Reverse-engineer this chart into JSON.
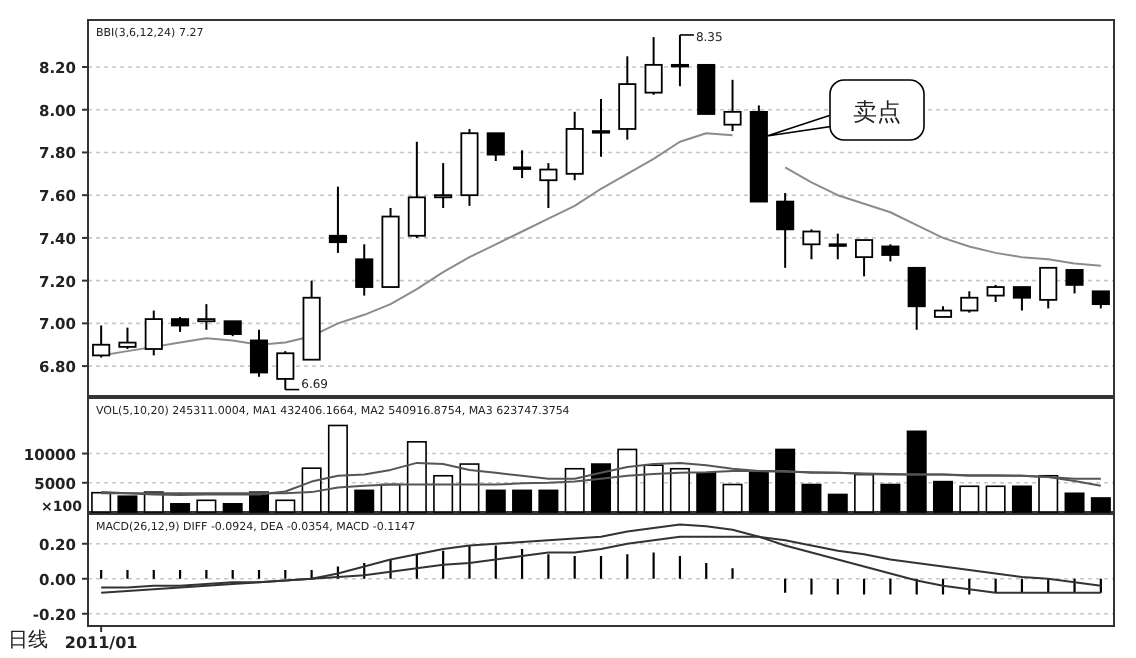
{
  "chart_data": [
    {
      "type": "candlestick",
      "subtitle": "BBI(3,6,12,24) 7.27",
      "categories": [
        null,
        null,
        null,
        null,
        null,
        null,
        null,
        null,
        null,
        null,
        null,
        null,
        null,
        null,
        null,
        null,
        null,
        null,
        null,
        null,
        null,
        null,
        null,
        null,
        null,
        null,
        null,
        null,
        null,
        null,
        null,
        null,
        null,
        null,
        null,
        null,
        null,
        null,
        null
      ],
      "ohlc": [
        [
          6.85,
          6.99,
          6.84,
          6.9
        ],
        [
          6.89,
          6.98,
          6.88,
          6.91
        ],
        [
          6.88,
          7.06,
          6.85,
          7.02
        ],
        [
          7.02,
          7.03,
          6.96,
          6.99
        ],
        [
          7.01,
          7.09,
          6.97,
          7.02
        ],
        [
          7.01,
          7.01,
          6.94,
          6.95
        ],
        [
          6.92,
          6.97,
          6.75,
          6.77
        ],
        [
          6.74,
          6.87,
          6.69,
          6.86
        ],
        [
          6.83,
          7.2,
          6.83,
          7.12
        ],
        [
          7.41,
          7.64,
          7.33,
          7.38
        ],
        [
          7.3,
          7.37,
          7.13,
          7.17
        ],
        [
          7.17,
          7.54,
          7.17,
          7.5
        ],
        [
          7.41,
          7.85,
          7.4,
          7.59
        ],
        [
          7.59,
          7.75,
          7.54,
          7.6
        ],
        [
          7.6,
          7.91,
          7.55,
          7.89
        ],
        [
          7.89,
          7.89,
          7.76,
          7.79
        ],
        [
          7.73,
          7.81,
          7.68,
          7.73
        ],
        [
          7.67,
          7.75,
          7.54,
          7.72
        ],
        [
          7.7,
          7.99,
          7.67,
          7.91
        ],
        [
          7.9,
          8.05,
          7.78,
          7.9
        ],
        [
          7.91,
          8.25,
          7.86,
          8.12
        ],
        [
          8.08,
          8.34,
          8.07,
          8.21
        ],
        [
          8.21,
          8.35,
          8.11,
          8.21
        ],
        [
          8.21,
          8.21,
          7.98,
          7.98
        ],
        [
          7.93,
          8.14,
          7.9,
          7.99
        ],
        [
          7.99,
          8.02,
          7.57,
          7.57
        ],
        [
          7.57,
          7.61,
          7.26,
          7.44
        ],
        [
          7.37,
          7.44,
          7.3,
          7.43
        ],
        [
          7.37,
          7.42,
          7.3,
          7.37
        ],
        [
          7.31,
          7.39,
          7.22,
          7.39
        ],
        [
          7.36,
          7.37,
          7.29,
          7.32
        ],
        [
          7.26,
          7.26,
          6.97,
          7.08
        ],
        [
          7.03,
          7.08,
          7.03,
          7.06
        ],
        [
          7.06,
          7.15,
          7.05,
          7.12
        ],
        [
          7.13,
          7.18,
          7.1,
          7.17
        ],
        [
          7.17,
          7.17,
          7.06,
          7.12
        ],
        [
          7.11,
          7.26,
          7.07,
          7.26
        ],
        [
          7.25,
          7.25,
          7.14,
          7.18
        ],
        [
          7.15,
          7.15,
          7.07,
          7.09
        ]
      ],
      "series": [
        {
          "type": "line",
          "color": "#8c8c8c",
          "values": [
            6.85,
            6.87,
            6.89,
            6.91,
            6.93,
            6.92,
            6.9,
            6.91,
            6.94,
            7.0,
            7.04,
            7.09,
            7.16,
            7.24,
            7.31,
            7.37,
            7.43,
            7.49,
            7.55,
            7.63,
            7.7,
            7.77,
            7.85,
            7.89,
            7.88,
            null,
            7.73,
            7.66,
            7.6,
            7.56,
            7.52,
            7.46,
            7.4,
            7.36,
            7.33,
            7.31,
            7.3,
            7.28,
            7.27
          ]
        }
      ],
      "ylim": [
        6.66,
        8.42
      ],
      "yticks": [
        {
          "value": 6.8,
          "label": "6.80"
        },
        {
          "value": 7.0,
          "label": "7.00"
        },
        {
          "value": 7.2,
          "label": "7.20"
        },
        {
          "value": 7.4,
          "label": "7.40"
        },
        {
          "value": 7.6,
          "label": "7.60"
        },
        {
          "value": 7.8,
          "label": "7.80"
        },
        {
          "value": 8.0,
          "label": "8.00"
        },
        {
          "value": 8.2,
          "label": "8.20"
        }
      ],
      "grid": "y",
      "tick_labels": "y",
      "annotations": [
        "8.35",
        "6.69",
        "卖点"
      ]
    },
    {
      "type": "bar",
      "subtitle": "VOL(5,10,20) 245311.0004, MA1 432406.1664, MA2 540916.8754, MA3 623747.3754",
      "ylabel": "×100",
      "categories": [
        null,
        null,
        null,
        null,
        null,
        null,
        null,
        null,
        null,
        null,
        null,
        null,
        null,
        null,
        null,
        null,
        null,
        null,
        null,
        null,
        null,
        null,
        null,
        null,
        null,
        null,
        null,
        null,
        null,
        null,
        null,
        null,
        null,
        null,
        null,
        null,
        null,
        null,
        null
      ],
      "series": [
        {
          "type": "bar",
          "values": [
            3300,
            2700,
            3400,
            1400,
            2000,
            1400,
            3400,
            2000,
            7500,
            14800,
            3700,
            4700,
            12000,
            6200,
            8200,
            3700,
            3700,
            3700,
            7400,
            8200,
            10700,
            8000,
            7400,
            6700,
            4700,
            6700,
            10700,
            4700,
            3000,
            6400,
            4700,
            13800,
            5200,
            4400,
            4400,
            4400,
            6200,
            3200,
            2400
          ],
          "colors": [
            "#ffffff",
            "#000000",
            "#ffffff",
            "#000000",
            "#ffffff",
            "#000000",
            "#000000",
            "#ffffff",
            "#ffffff",
            "#ffffff",
            "#000000",
            "#ffffff",
            "#ffffff",
            "#ffffff",
            "#ffffff",
            "#000000",
            "#000000",
            "#000000",
            "#ffffff",
            "#000000",
            "#ffffff",
            "#ffffff",
            "#ffffff",
            "#000000",
            "#ffffff",
            "#000000",
            "#000000",
            "#000000",
            "#000000",
            "#ffffff",
            "#000000",
            "#000000",
            "#000000",
            "#ffffff",
            "#ffffff",
            "#000000",
            "#ffffff",
            "#000000",
            "#000000"
          ]
        },
        {
          "type": "line",
          "color": "#555555",
          "values": [
            3400,
            3200,
            3000,
            2900,
            3000,
            3000,
            3000,
            3500,
            5200,
            6200,
            6400,
            7200,
            8400,
            8200,
            7200,
            6700,
            6200,
            5700,
            5700,
            6700,
            7700,
            8200,
            8400,
            8000,
            7400,
            7000,
            7000,
            6700,
            6700,
            6500,
            6400,
            6400,
            6400,
            6200,
            6200,
            6200,
            6000,
            5700,
            5700
          ]
        },
        {
          "type": "line",
          "color": "#555555",
          "values": [
            3200,
            3200,
            3200,
            3200,
            3200,
            3200,
            3200,
            3200,
            3400,
            4200,
            4500,
            4700,
            4700,
            4700,
            4700,
            4700,
            4900,
            5000,
            5200,
            5700,
            6200,
            6500,
            6700,
            6800,
            7000,
            7000,
            6900,
            6800,
            6700,
            6600,
            6500,
            6400,
            6400,
            6300,
            6300,
            6200,
            6000,
            5300,
            4500
          ]
        }
      ],
      "ylim": [
        0,
        19500
      ],
      "yticks": [
        5000,
        10000
      ],
      "grid": "y",
      "tick_labels": "y"
    },
    {
      "type": "line",
      "subtitle": "MACD(26,12,9) DIFF -0.0924, DEA -0.0354, MACD -0.1147",
      "categories": [
        "2011/01",
        null,
        null,
        null,
        null,
        null,
        null,
        null,
        null,
        null,
        null,
        null,
        null,
        null,
        null,
        null,
        null,
        null,
        null,
        null,
        null,
        null,
        null,
        null,
        null,
        null,
        null,
        null,
        null,
        null,
        null,
        null,
        null,
        null,
        null,
        null,
        null,
        null,
        null
      ],
      "series": [
        {
          "type": "bar",
          "color": "#000000",
          "values": [
            0.05,
            0.05,
            0.05,
            0.05,
            0.05,
            0.05,
            0.05,
            0.05,
            0.05,
            0.07,
            0.09,
            0.11,
            0.14,
            0.16,
            0.19,
            0.19,
            0.17,
            0.14,
            0.13,
            0.13,
            0.14,
            0.15,
            0.13,
            0.09,
            0.06,
            0.0,
            -0.08,
            -0.09,
            -0.09,
            -0.09,
            -0.09,
            -0.09,
            -0.09,
            -0.09,
            -0.08,
            -0.08,
            -0.08,
            -0.08,
            -0.08
          ]
        },
        {
          "type": "line",
          "color": "#333333",
          "values": [
            -0.08,
            -0.07,
            -0.06,
            -0.05,
            -0.04,
            -0.03,
            -0.02,
            -0.01,
            0.0,
            0.03,
            0.07,
            0.11,
            0.14,
            0.17,
            0.19,
            0.2,
            0.21,
            0.22,
            0.23,
            0.24,
            0.27,
            0.29,
            0.31,
            0.3,
            0.28,
            0.24,
            0.19,
            0.15,
            0.11,
            0.07,
            0.03,
            -0.01,
            -0.04,
            -0.06,
            -0.08,
            -0.08,
            -0.08,
            -0.08,
            -0.08
          ]
        },
        {
          "type": "line",
          "color": "#333333",
          "values": [
            -0.05,
            -0.05,
            -0.04,
            -0.04,
            -0.03,
            -0.02,
            -0.02,
            -0.01,
            0.0,
            0.01,
            0.02,
            0.04,
            0.06,
            0.08,
            0.09,
            0.11,
            0.13,
            0.15,
            0.15,
            0.17,
            0.2,
            0.22,
            0.24,
            0.24,
            0.24,
            0.24,
            0.22,
            0.19,
            0.16,
            0.14,
            0.11,
            0.09,
            0.07,
            0.05,
            0.03,
            0.01,
            0.0,
            -0.02,
            -0.04
          ]
        }
      ],
      "ylim": [
        -0.27,
        0.37
      ],
      "yticks": [
        {
          "value": -0.2,
          "label": "-0.20"
        },
        {
          "value": 0,
          "label": "0.00"
        },
        {
          "value": 0.2,
          "label": "0.20"
        }
      ],
      "grid": "y",
      "annotations": [
        "日线"
      ]
    }
  ]
}
